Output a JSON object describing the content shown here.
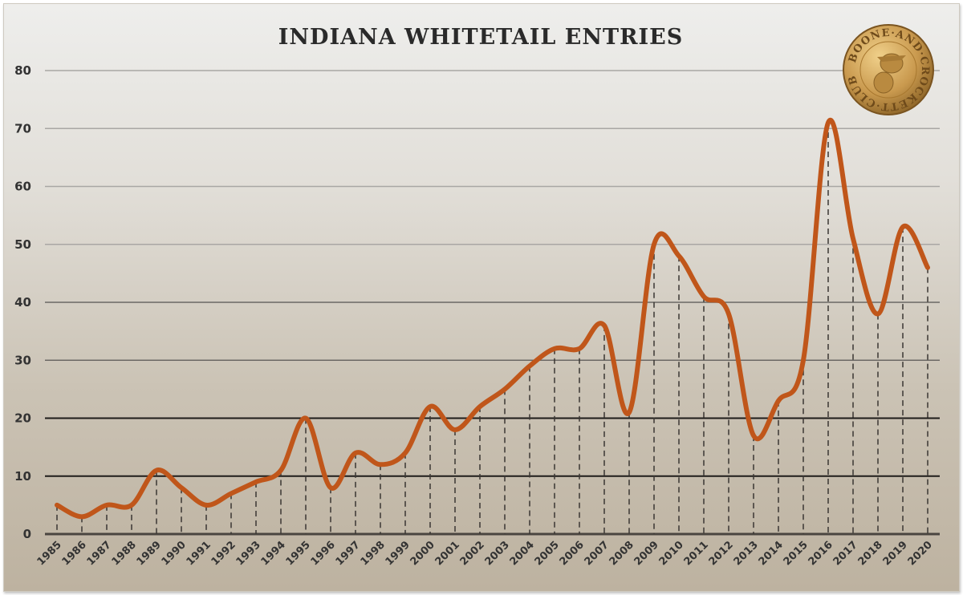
{
  "chart_data": {
    "type": "line",
    "title": "INDIANA WHITETAIL ENTRIES",
    "xlabel": "",
    "ylabel": "",
    "x": [
      "1985",
      "1986",
      "1987",
      "1988",
      "1989",
      "1990",
      "1991",
      "1992",
      "1993",
      "1994",
      "1995",
      "1996",
      "1997",
      "1998",
      "1999",
      "2000",
      "2001",
      "2002",
      "2003",
      "2004",
      "2005",
      "2006",
      "2007",
      "2008",
      "2009",
      "2010",
      "2011",
      "2012",
      "2013",
      "2014",
      "2015",
      "2016",
      "2017",
      "2018",
      "2019",
      "2020"
    ],
    "values": [
      5,
      3,
      5,
      5,
      11,
      8,
      5,
      7,
      9,
      11,
      20,
      8,
      14,
      12,
      14,
      22,
      18,
      22,
      25,
      29,
      32,
      32,
      36,
      21,
      50,
      48,
      41,
      38,
      17,
      23,
      30,
      71,
      51,
      38,
      53,
      46
    ],
    "ylim": [
      0,
      80
    ],
    "yticks": [
      "0",
      "10",
      "20",
      "30",
      "40",
      "50",
      "60",
      "70",
      "80"
    ],
    "grid": true,
    "smooth": true,
    "drop_lines": "dashed",
    "line_color": "#c0561a"
  },
  "logo": {
    "text": "BOONE AND CROCKETT CLUB",
    "color": "#c9a060"
  }
}
